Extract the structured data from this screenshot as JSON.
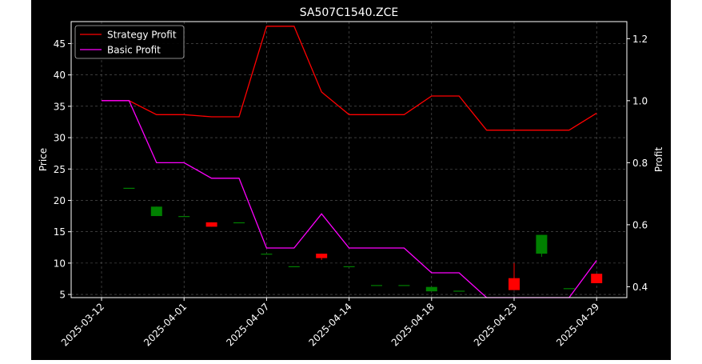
{
  "chart_data": {
    "type": "candlestick+line",
    "title": "SA507C1540.ZCE",
    "ylabel_left": "Price",
    "ylabel_right": "Profit",
    "xlabel": "",
    "x_tick_labels": [
      "2025-03-12",
      "2025-04-01",
      "2025-04-07",
      "2025-04-14",
      "2025-04-18",
      "2025-04-23",
      "2025-04-29"
    ],
    "x_tick_indices": [
      0,
      3,
      6,
      9,
      12,
      15,
      18
    ],
    "ylim_left": [
      4.5,
      48.5
    ],
    "yticks_left": [
      5,
      10,
      15,
      20,
      25,
      30,
      35,
      40,
      45
    ],
    "ylim_right": [
      0.365,
      1.255
    ],
    "yticks_right": [
      0.4,
      0.6,
      0.8,
      1.0,
      1.2
    ],
    "grid": true,
    "legend_position": "top-left",
    "colors": {
      "background": "#000000",
      "up": "#008000",
      "down": "#ff0000",
      "strategy": "#ff0000",
      "basic": "#ff00ff",
      "text": "#ffffff"
    },
    "candles": [
      {
        "i": 1,
        "open": 22.0,
        "high": 22.0,
        "low": 22.0,
        "close": 22.0
      },
      {
        "i": 2,
        "open": 17.5,
        "high": 19.0,
        "low": 17.5,
        "close": 19.0
      },
      {
        "i": 3,
        "open": 17.5,
        "high": 17.5,
        "low": 17.5,
        "close": 17.5
      },
      {
        "i": 4,
        "open": 16.5,
        "high": 16.5,
        "low": 15.8,
        "close": 15.8
      },
      {
        "i": 5,
        "open": 16.5,
        "high": 16.5,
        "low": 16.5,
        "close": 16.5
      },
      {
        "i": 6,
        "open": 11.5,
        "high": 11.5,
        "low": 11.5,
        "close": 11.5
      },
      {
        "i": 7,
        "open": 9.5,
        "high": 9.5,
        "low": 9.5,
        "close": 9.5
      },
      {
        "i": 8,
        "open": 11.5,
        "high": 11.5,
        "low": 10.5,
        "close": 10.8
      },
      {
        "i": 9,
        "open": 9.5,
        "high": 9.5,
        "low": 9.5,
        "close": 9.5
      },
      {
        "i": 10,
        "open": 6.5,
        "high": 6.5,
        "low": 6.5,
        "close": 6.5
      },
      {
        "i": 11,
        "open": 6.5,
        "high": 6.5,
        "low": 6.5,
        "close": 6.5
      },
      {
        "i": 12,
        "open": 5.5,
        "high": 6.2,
        "low": 5.5,
        "close": 6.2
      },
      {
        "i": 13,
        "open": 5.6,
        "high": 5.6,
        "low": 5.6,
        "close": 5.6
      },
      {
        "i": 15,
        "open": 7.6,
        "high": 10.0,
        "low": 5.7,
        "close": 5.7
      },
      {
        "i": 16,
        "open": 11.5,
        "high": 14.5,
        "low": 11.0,
        "close": 14.5
      },
      {
        "i": 17,
        "open": 6.0,
        "high": 6.0,
        "low": 6.0,
        "close": 6.0
      },
      {
        "i": 18,
        "open": 8.3,
        "high": 8.3,
        "low": 6.8,
        "close": 6.8
      }
    ],
    "series": [
      {
        "name": "Strategy Profit",
        "color": "#ff0000",
        "values": [
          1.0,
          1.0,
          0.955,
          0.955,
          0.948,
          0.948,
          1.24,
          1.24,
          1.028,
          0.955,
          0.955,
          0.955,
          1.015,
          1.015,
          0.905,
          0.905,
          0.905,
          0.905,
          0.96
        ]
      },
      {
        "name": "Basic Profit",
        "color": "#ff00ff",
        "values": [
          1.0,
          1.0,
          0.8,
          0.8,
          0.75,
          0.75,
          0.525,
          0.525,
          0.635,
          0.525,
          0.525,
          0.525,
          0.445,
          0.445,
          0.365,
          0.365,
          0.365,
          0.365,
          0.485
        ]
      }
    ]
  }
}
